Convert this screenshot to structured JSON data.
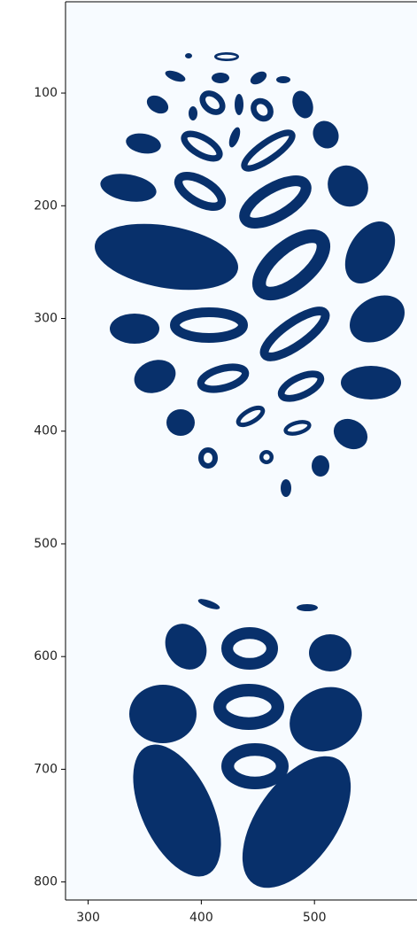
{
  "chart_data": {
    "type": "image",
    "colormap": [
      "#f7fbff",
      "#08306b"
    ],
    "xlim": [
      280,
      591
    ],
    "ylim": [
      816,
      19
    ],
    "xticks": [
      300,
      400,
      500
    ],
    "yticks": [
      100,
      200,
      300,
      400,
      500,
      600,
      700,
      800
    ]
  }
}
